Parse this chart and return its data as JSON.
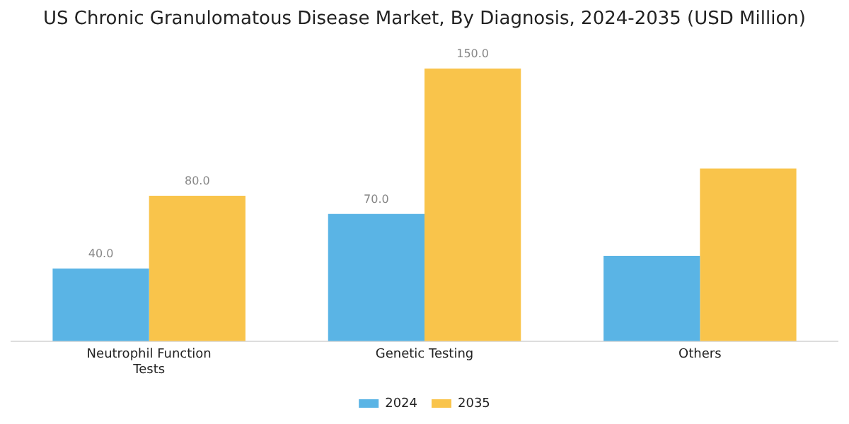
{
  "chart_data": {
    "type": "bar",
    "title": "US Chronic Granulomatous Disease Market, By Diagnosis, 2024-2035 (USD Million)",
    "categories": [
      "Neutrophil Function Tests",
      "Genetic Testing",
      "Others"
    ],
    "series": [
      {
        "name": "2024",
        "color": "#5ab4e5",
        "values": [
          40,
          70,
          47
        ],
        "value_labels": [
          "40.0",
          "70.0",
          null
        ]
      },
      {
        "name": "2035",
        "color": "#f9c44b",
        "values": [
          80,
          150,
          95
        ],
        "value_labels": [
          "80.0",
          "150.0",
          null
        ]
      }
    ],
    "legend": "bottom",
    "grid": false
  }
}
